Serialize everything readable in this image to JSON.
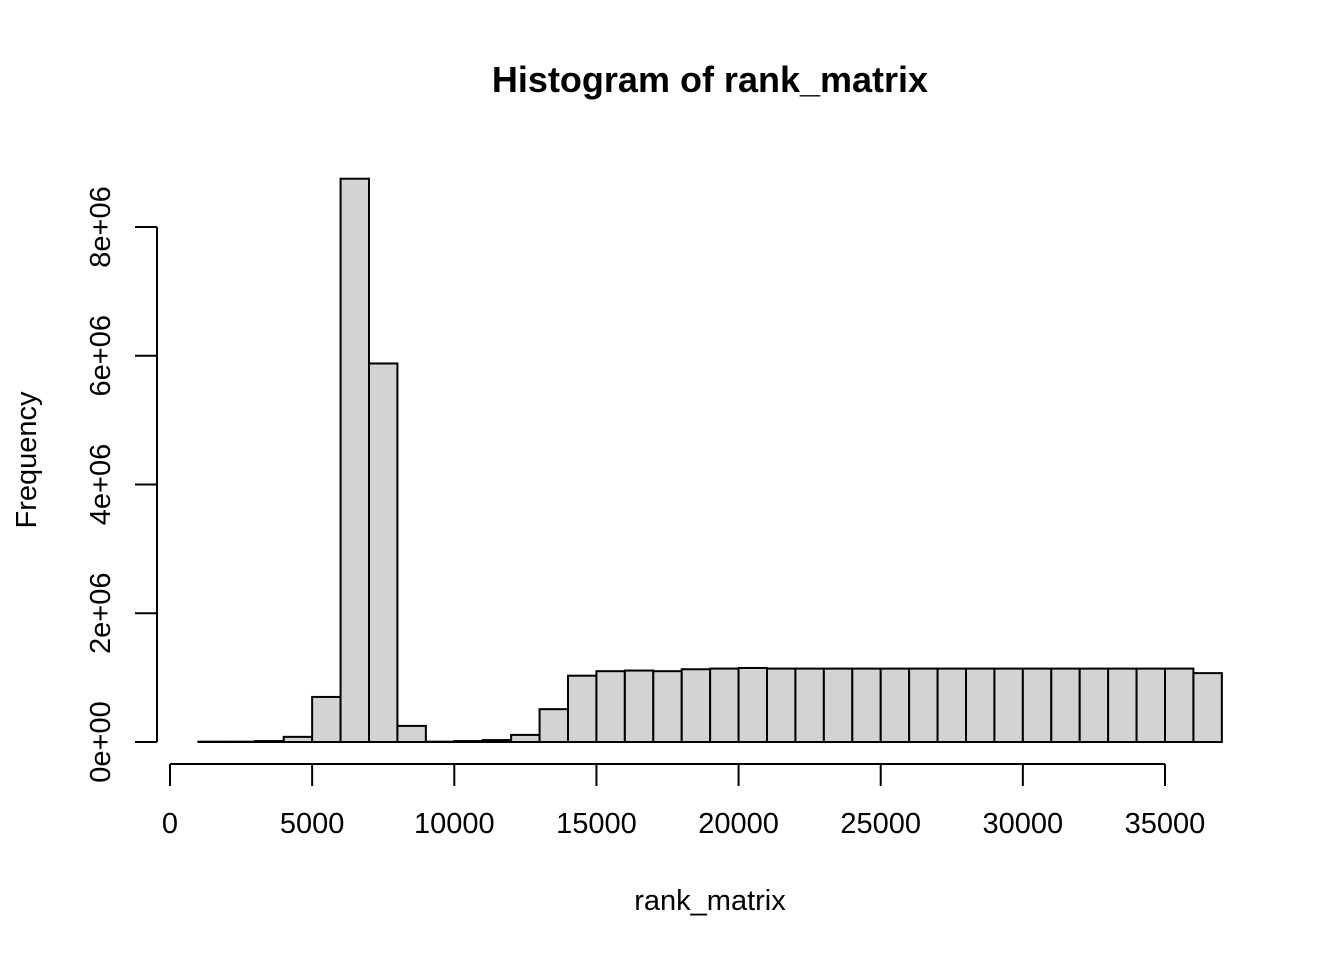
{
  "chart_data": {
    "type": "bar",
    "title": "Histogram of rank_matrix",
    "xlabel": "rank_matrix",
    "ylabel": "Frequency",
    "bin_width": 1000,
    "bin_start": 1000,
    "values": [
      5000,
      5000,
      15000,
      80000,
      700000,
      8750000,
      5880000,
      250000,
      5000,
      15000,
      30000,
      110000,
      510000,
      1030000,
      1100000,
      1110000,
      1100000,
      1130000,
      1140000,
      1150000,
      1140000,
      1140000,
      1140000,
      1140000,
      1140000,
      1140000,
      1140000,
      1140000,
      1140000,
      1140000,
      1140000,
      1140000,
      1140000,
      1140000,
      1140000,
      1070000
    ],
    "xlim": [
      0,
      37000
    ],
    "ylim": [
      0,
      8750000
    ],
    "x_ticks": [
      0,
      5000,
      10000,
      15000,
      20000,
      25000,
      30000,
      35000
    ],
    "x_tick_labels": [
      "0",
      "5000",
      "10000",
      "15000",
      "20000",
      "25000",
      "30000",
      "35000"
    ],
    "y_ticks": [
      0,
      2000000,
      4000000,
      6000000,
      8000000
    ],
    "y_tick_labels": [
      "0e+00",
      "2e+06",
      "4e+06",
      "6e+06",
      "8e+06"
    ],
    "bar_color": "#d3d3d3",
    "grid": false,
    "legend": "none"
  }
}
